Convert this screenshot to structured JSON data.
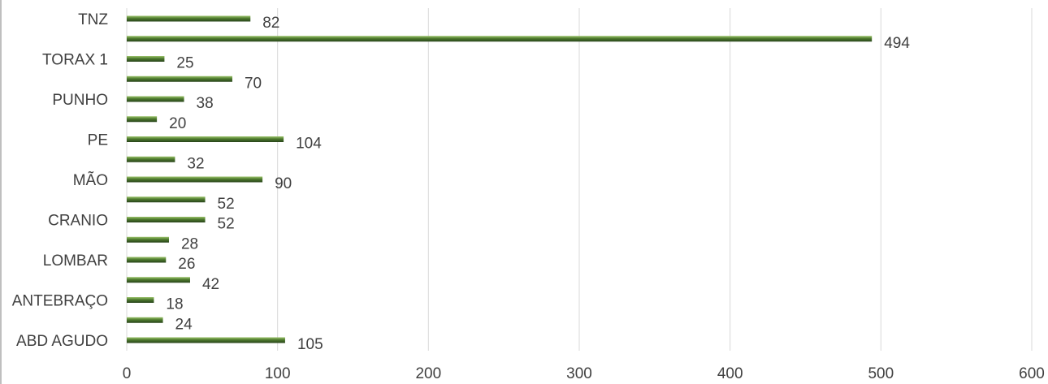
{
  "chart_data": {
    "type": "bar",
    "orientation": "horizontal",
    "title": "",
    "xlabel": "",
    "ylabel": "",
    "categories": [
      "ABD AGUDO",
      "",
      "ANTEBRAÇO",
      "",
      "LOMBAR",
      "",
      "CRANIO",
      "",
      "MÃO",
      "",
      "PE",
      "",
      "PUNHO",
      "",
      "TORAX 1",
      "",
      "TNZ"
    ],
    "values": [
      105,
      24,
      18,
      42,
      26,
      28,
      52,
      52,
      90,
      32,
      104,
      20,
      38,
      70,
      25,
      494,
      82
    ],
    "xlim": [
      0,
      600
    ],
    "xticks": [
      "0",
      "100",
      "200",
      "300",
      "400",
      "500",
      "600"
    ],
    "grid": "vertical",
    "legend": "none",
    "bar_color": "#4e7a2e"
  }
}
